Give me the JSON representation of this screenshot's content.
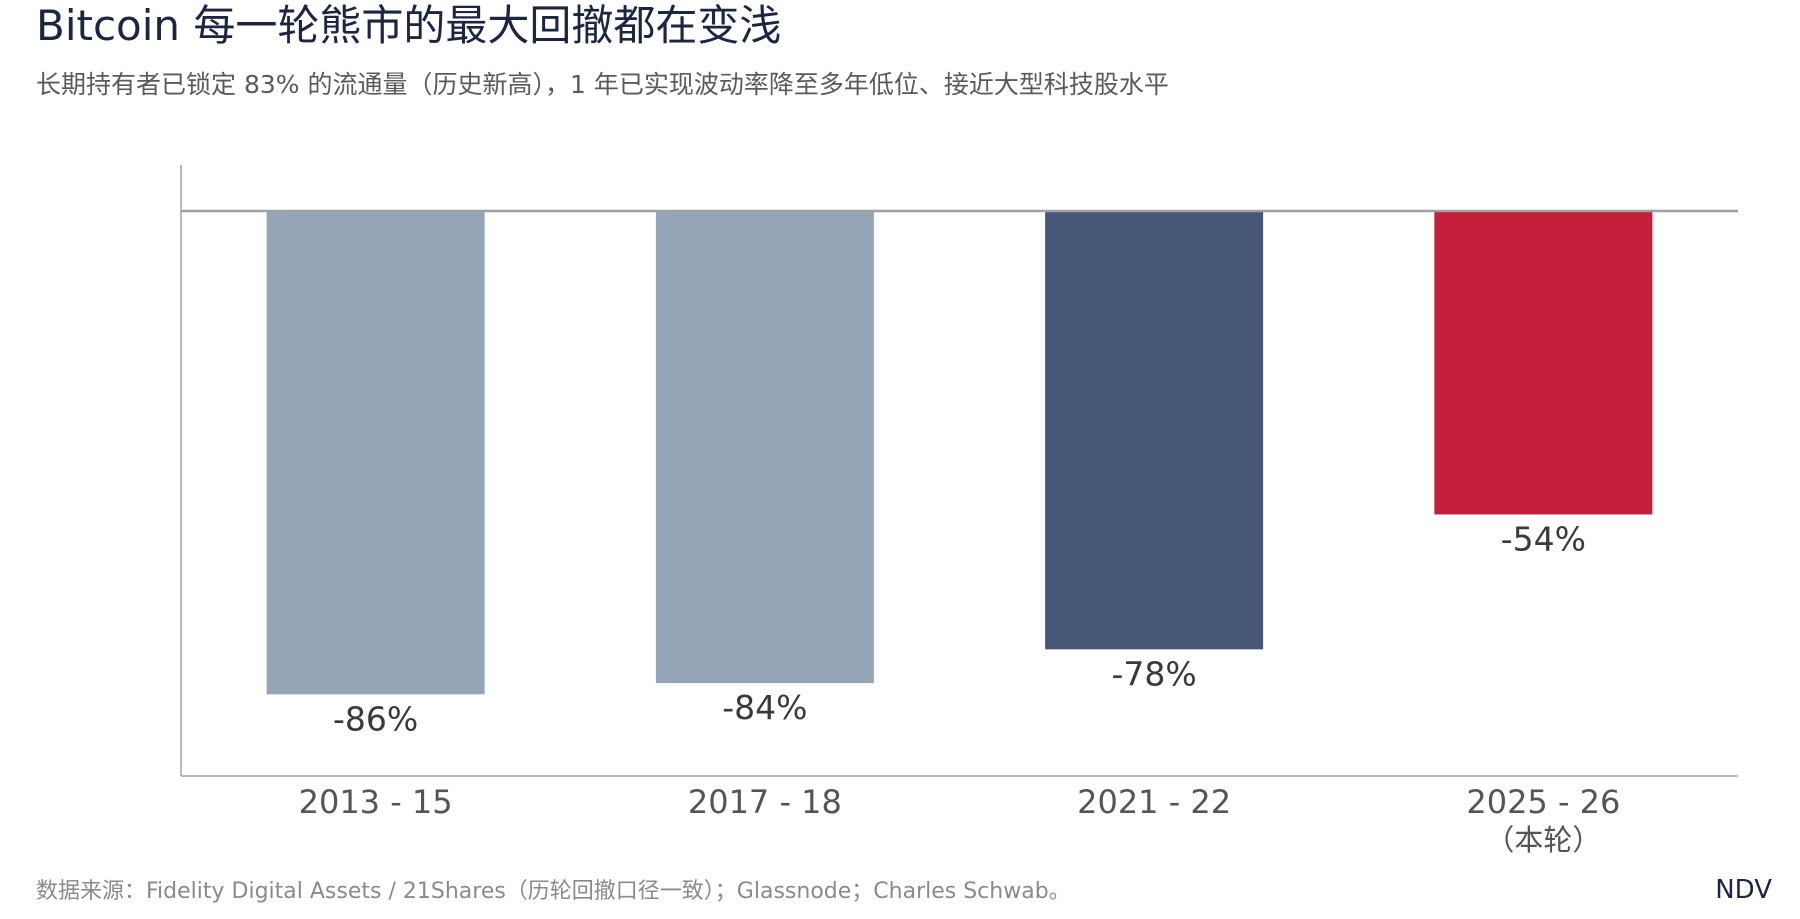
{
  "title": "Bitcoin 每一轮熊市的最大回撤都在变浅",
  "subtitle": "长期持有者已锁定 83% 的流通量（历史新高），1 年已实现波动率降至多年低位、接近大型科技股水平",
  "source": "数据来源：Fidelity Digital Assets / 21Shares（历轮回撤口径一致）；Glassnode；Charles Schwab。",
  "brand": "NDV",
  "colors": {
    "past_cycle": "#95a5b8",
    "prior_cycle": "#465676",
    "current_cycle": "#c41e3a",
    "axis": "#a0a0a0",
    "label": "#3a3a3a"
  },
  "chart_data": {
    "type": "bar",
    "categories": [
      "2013 - 15",
      "2017 - 18",
      "2021 - 22",
      "2025 - 26"
    ],
    "category_sublabels": [
      "",
      "",
      "",
      "（本轮）"
    ],
    "values": [
      -86,
      -84,
      -78,
      -54
    ],
    "data_labels": [
      "-86%",
      "-84%",
      "-78%",
      "-54%"
    ],
    "bar_colors": [
      "#95a5b8",
      "#95a5b8",
      "#465676",
      "#c41e3a"
    ],
    "title": "",
    "xlabel": "",
    "ylabel": "",
    "ylim": [
      -100,
      8
    ],
    "grid": false,
    "legend": "none"
  }
}
